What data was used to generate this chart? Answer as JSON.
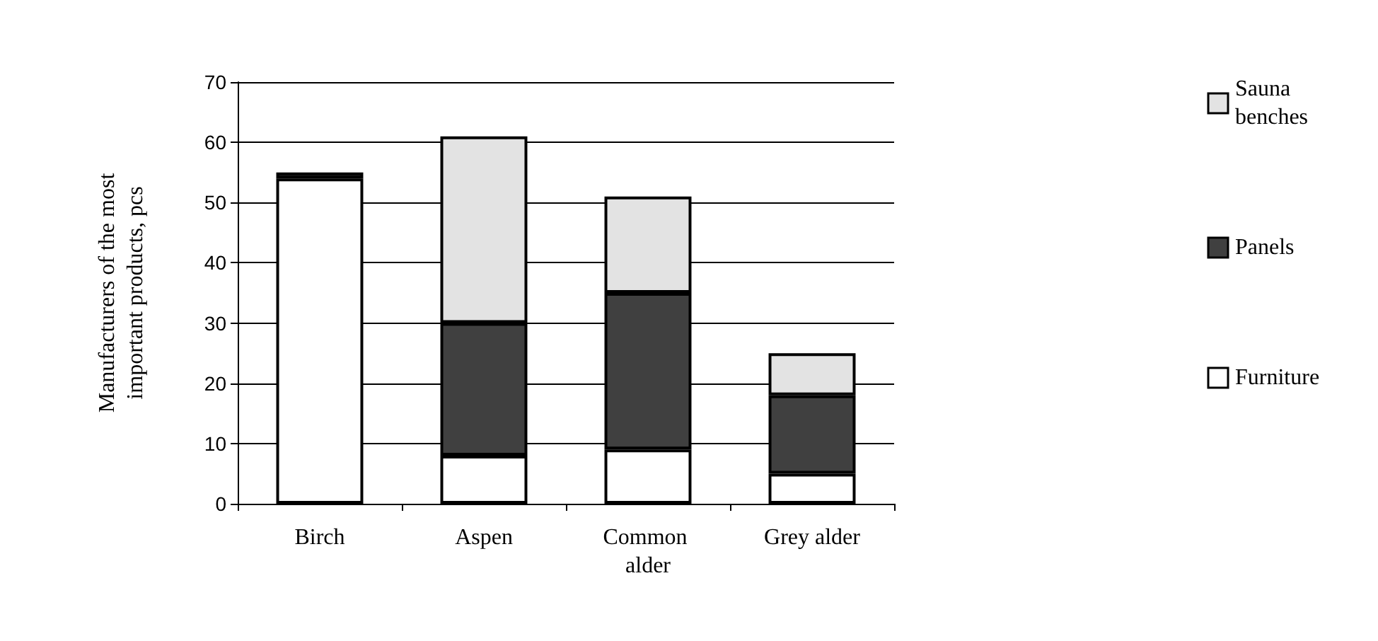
{
  "chart_data": {
    "type": "bar",
    "stacked": true,
    "ylabel": "Manufacturers of the most important products, pcs",
    "categories": [
      "Birch",
      "Aspen",
      "Common alder",
      "Grey alder"
    ],
    "series": [
      {
        "name": "Furniture",
        "color": "#ffffff",
        "values": [
          54,
          8,
          9,
          5
        ]
      },
      {
        "name": "Panels",
        "color": "#404040",
        "values": [
          1,
          22,
          26,
          13
        ]
      },
      {
        "name": "Sauna benches",
        "color": "#e3e3e3",
        "values": [
          0,
          31,
          16,
          7
        ]
      }
    ],
    "ylim": [
      0,
      70
    ],
    "yticks": [
      0,
      10,
      20,
      30,
      40,
      50,
      60,
      70
    ],
    "grid": "y",
    "legend": "right"
  }
}
